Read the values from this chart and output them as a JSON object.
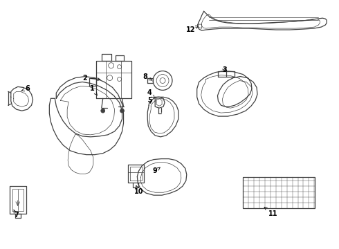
{
  "background_color": "#ffffff",
  "line_color": "#404040",
  "label_color": "#000000",
  "fig_width": 4.9,
  "fig_height": 3.6,
  "dpi": 100,
  "xlim": [
    0,
    490
  ],
  "ylim": [
    0,
    360
  ]
}
